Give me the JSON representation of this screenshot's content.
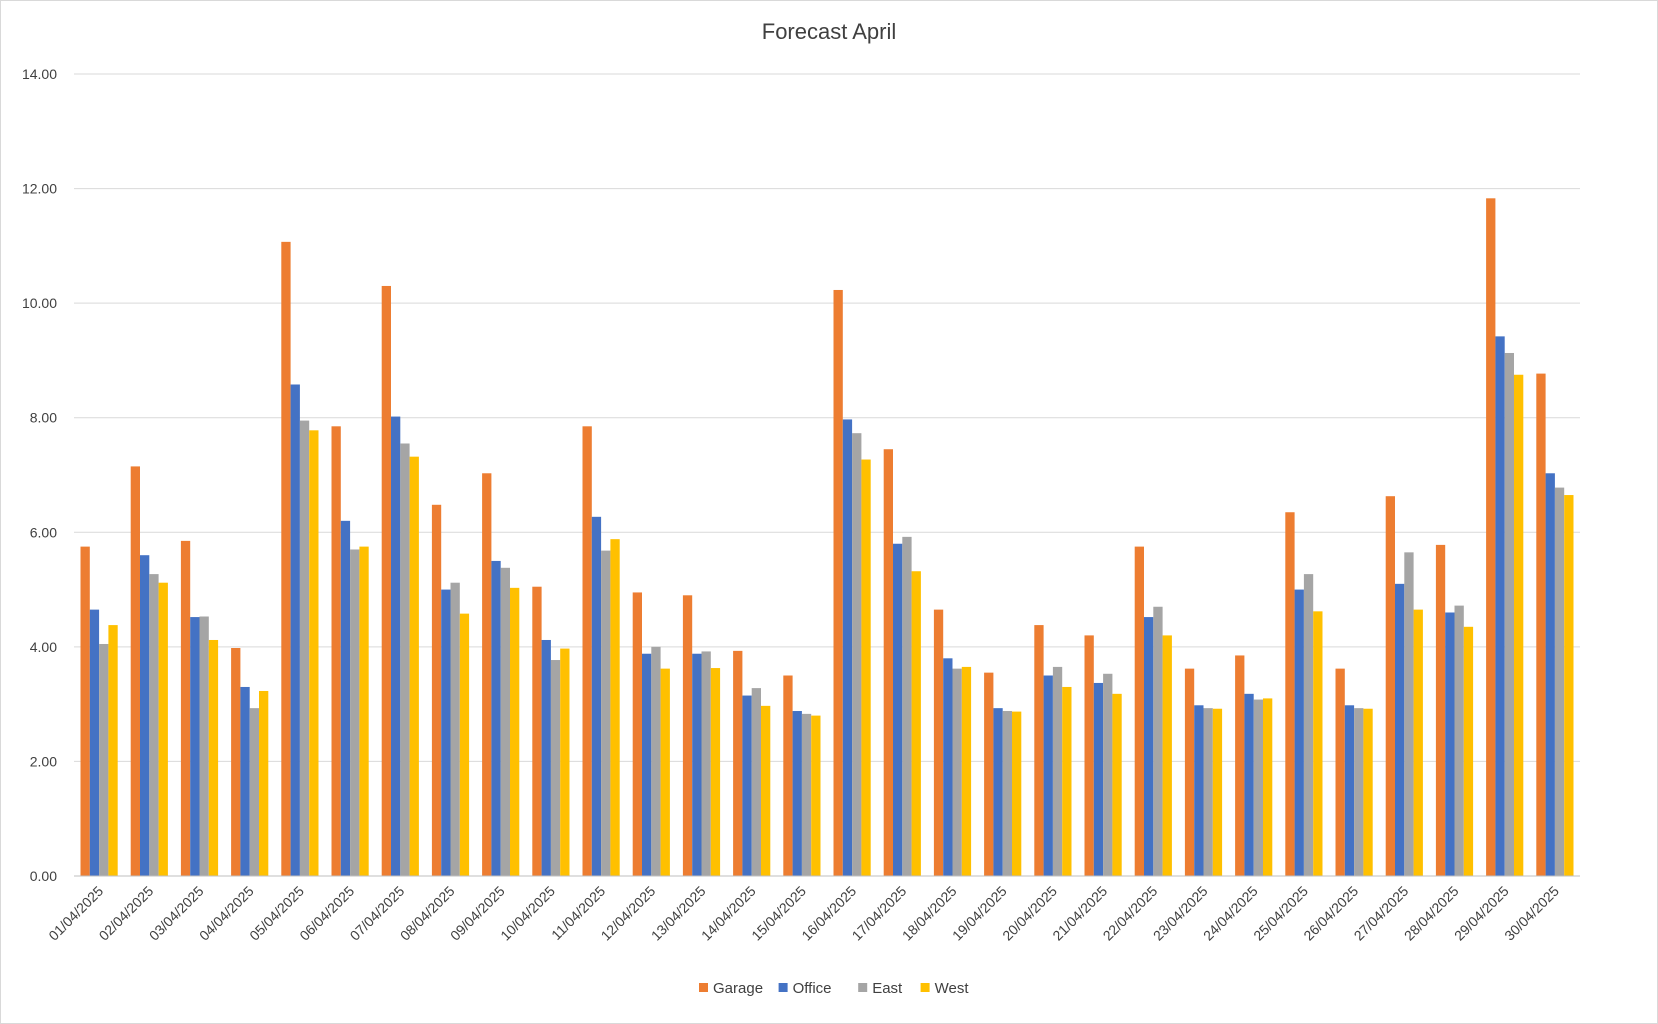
{
  "chart_data": {
    "type": "bar",
    "title": "Forecast April",
    "xlabel": "",
    "ylabel": "",
    "ylim": [
      0,
      14
    ],
    "yticks": [
      "0.00",
      "2.00",
      "4.00",
      "6.00",
      "8.00",
      "10.00",
      "12.00",
      "14.00"
    ],
    "ytick_values": [
      0,
      2,
      4,
      6,
      8,
      10,
      12,
      14
    ],
    "grid": true,
    "legend": "bottom",
    "categories": [
      "01/04/2025",
      "02/04/2025",
      "03/04/2025",
      "04/04/2025",
      "05/04/2025",
      "06/04/2025",
      "07/04/2025",
      "08/04/2025",
      "09/04/2025",
      "10/04/2025",
      "11/04/2025",
      "12/04/2025",
      "13/04/2025",
      "14/04/2025",
      "15/04/2025",
      "16/04/2025",
      "17/04/2025",
      "18/04/2025",
      "19/04/2025",
      "20/04/2025",
      "21/04/2025",
      "22/04/2025",
      "23/04/2025",
      "24/04/2025",
      "25/04/2025",
      "26/04/2025",
      "27/04/2025",
      "28/04/2025",
      "29/04/2025",
      "30/04/2025"
    ],
    "series": [
      {
        "name": "Garage",
        "color": "#ED7D31",
        "values": [
          5.75,
          7.15,
          5.85,
          3.98,
          11.07,
          7.85,
          10.3,
          6.48,
          7.03,
          5.05,
          7.85,
          4.95,
          4.9,
          3.93,
          3.5,
          10.23,
          7.45,
          4.65,
          3.55,
          4.38,
          4.2,
          5.75,
          3.62,
          3.85,
          6.35,
          3.62,
          6.63,
          5.78,
          11.83,
          8.77
        ]
      },
      {
        "name": "Office",
        "color": "#4472C4",
        "values": [
          4.65,
          5.6,
          4.52,
          3.3,
          8.58,
          6.2,
          8.02,
          5.0,
          5.5,
          4.12,
          6.27,
          3.88,
          3.88,
          3.15,
          2.88,
          7.97,
          5.8,
          3.8,
          2.93,
          3.5,
          3.37,
          4.52,
          2.98,
          3.18,
          5.0,
          2.98,
          5.1,
          4.6,
          9.42,
          7.03
        ]
      },
      {
        "name": "East",
        "color": "#A5A5A5",
        "values": [
          4.05,
          5.27,
          4.53,
          2.93,
          7.95,
          5.7,
          7.55,
          5.12,
          5.38,
          3.77,
          5.68,
          4.0,
          3.92,
          3.28,
          2.83,
          7.73,
          5.92,
          3.62,
          2.88,
          3.65,
          3.53,
          4.7,
          2.93,
          3.08,
          5.27,
          2.93,
          5.65,
          4.72,
          9.13,
          6.78
        ]
      },
      {
        "name": "West",
        "color": "#FFC000",
        "values": [
          4.38,
          5.12,
          4.12,
          3.23,
          7.78,
          5.75,
          7.32,
          4.58,
          5.03,
          3.97,
          5.88,
          3.62,
          3.63,
          2.97,
          2.8,
          7.27,
          5.32,
          3.65,
          2.87,
          3.3,
          3.18,
          4.2,
          2.92,
          3.1,
          4.62,
          2.92,
          4.65,
          4.35,
          8.75,
          6.65
        ]
      }
    ]
  }
}
